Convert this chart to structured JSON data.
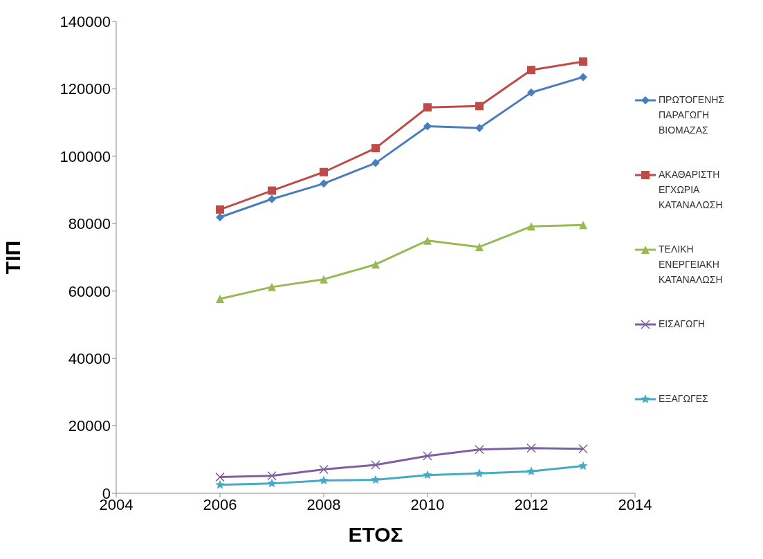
{
  "chart_data": {
    "type": "line",
    "xlabel": "ΕΤΟΣ",
    "ylabel": "ΤΙΠ",
    "x": [
      2006,
      2007,
      2008,
      2009,
      2010,
      2011,
      2012,
      2013
    ],
    "xlim": [
      2004,
      2014
    ],
    "xticks": [
      2004,
      2006,
      2008,
      2010,
      2012,
      2014
    ],
    "ylim": [
      0,
      140000
    ],
    "yticks": [
      0,
      20000,
      40000,
      60000,
      80000,
      100000,
      120000,
      140000
    ],
    "grid": false,
    "legend": "right",
    "line_style": "solid",
    "series": [
      {
        "name": "ΠΡΩΤΟΓΕΝΗΣ ΠΑΡΑΓΩΓΗ ΒΙΟΜΑΖΑΣ",
        "color": "#4a7ebb",
        "marker": "diamond",
        "values": [
          81900,
          87300,
          91900,
          98000,
          108900,
          108400,
          118900,
          123500
        ]
      },
      {
        "name": "ΑΚΑΘΑΡΙΣΤΗ ΕΓΧΩΡΙΑ ΚΑΤΑΝΑΛΩΣΗ",
        "color": "#be4b48",
        "marker": "square",
        "values": [
          84200,
          89800,
          95300,
          102400,
          114500,
          114900,
          125600,
          128100
        ]
      },
      {
        "name": "ΤΕΛΙΚΗ ΕΝΕΡΓΕΙΑΚΗ ΚΑΤΑΝΑΛΩΣΗ",
        "color": "#98b954",
        "marker": "triangle",
        "values": [
          57700,
          61200,
          63500,
          67900,
          75000,
          73100,
          79200,
          79600
        ]
      },
      {
        "name": "ΕΙΣΑΓΩΓΗ",
        "color": "#7d60a0",
        "marker": "cross",
        "values": [
          4800,
          5200,
          7100,
          8400,
          11100,
          13000,
          13400,
          13200
        ]
      },
      {
        "name": "ΕΞΑΓΩΓΕΣ",
        "color": "#46aac5",
        "marker": "star",
        "values": [
          2500,
          2900,
          3800,
          4000,
          5400,
          5900,
          6500,
          8100
        ]
      }
    ]
  }
}
